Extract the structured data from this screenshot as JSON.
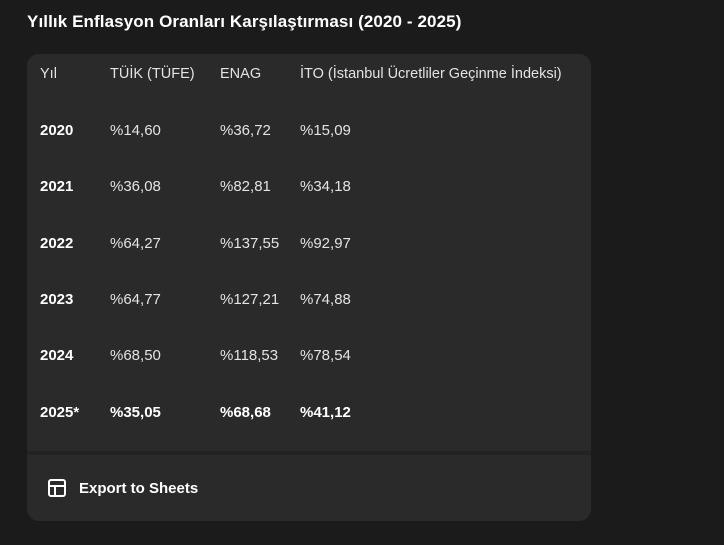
{
  "title": "Yıllık Enflasyon Oranları Karşılaştırması (2020 - 2025)",
  "table": {
    "headers": [
      "Yıl",
      "TÜİK (TÜFE)",
      "ENAG",
      "İTO (İstanbul Ücretliler Geçinme İndeksi)"
    ],
    "rows": [
      [
        "2020",
        "%14,60",
        "%36,72",
        "%15,09"
      ],
      [
        "2021",
        "%36,08",
        "%82,81",
        "%34,18"
      ],
      [
        "2022",
        "%64,27",
        "%137,55",
        "%92,97"
      ],
      [
        "2023",
        "%64,77",
        "%127,21",
        "%74,88"
      ],
      [
        "2024",
        "%68,50",
        "%118,53",
        "%78,54"
      ],
      [
        "2025*",
        "%35,05",
        "%68,68",
        "%41,12"
      ]
    ]
  },
  "footer": {
    "export_label": "Export to Sheets",
    "export_icon": "sheets-table-icon"
  }
}
